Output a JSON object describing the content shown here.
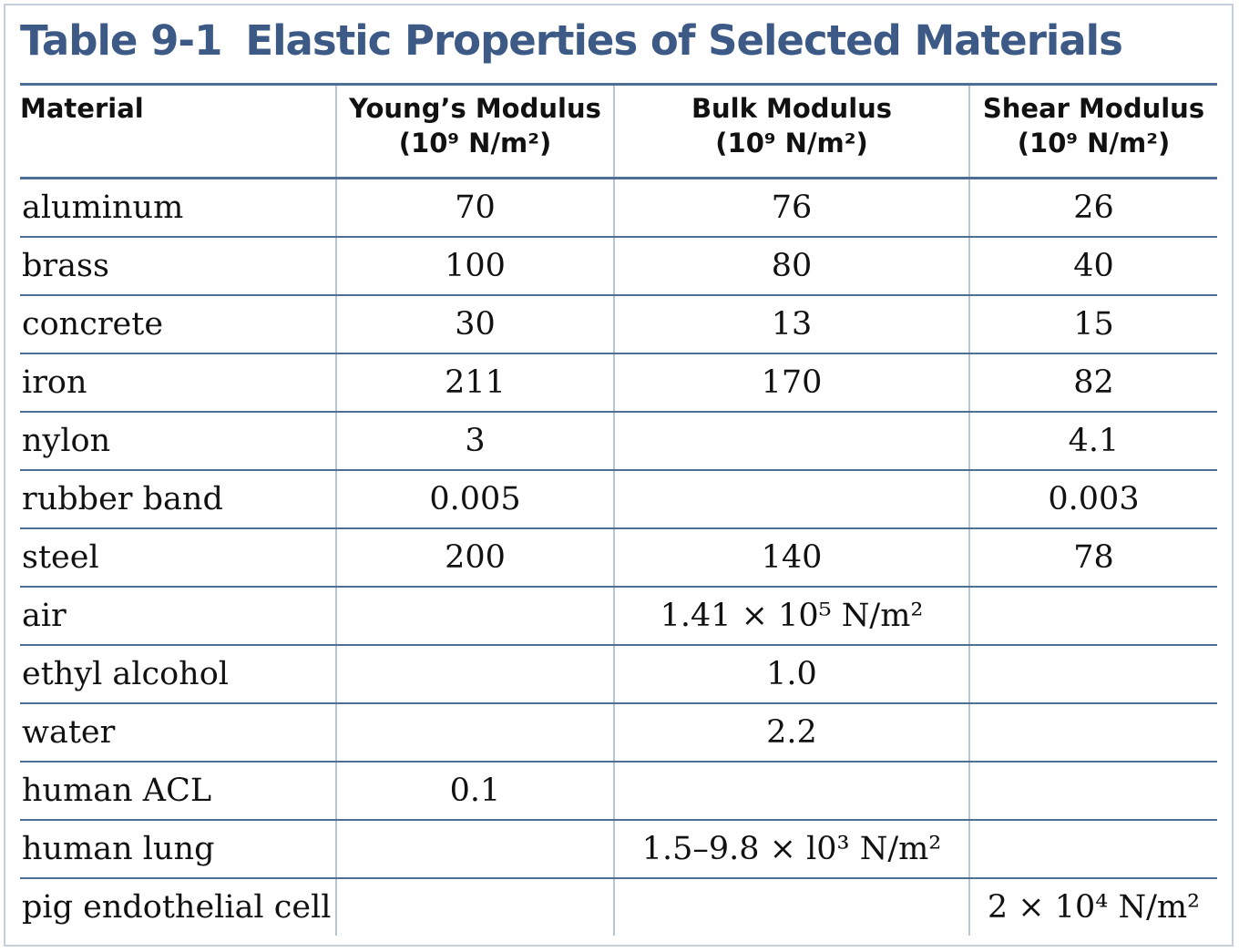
{
  "title": {
    "number": "Table 9-1",
    "text": "Elastic Properties of Selected Materials"
  },
  "columns": [
    {
      "label": "Material",
      "unit": ""
    },
    {
      "label": "Young’s Modulus",
      "unit": "(10⁹ N/m²)"
    },
    {
      "label": "Bulk Modulus",
      "unit": "(10⁹ N/m²)"
    },
    {
      "label": "Shear Modulus",
      "unit": "(10⁹ N/m²)"
    }
  ],
  "rows": [
    {
      "material": "aluminum",
      "young": "70",
      "bulk": "76",
      "shear": "26"
    },
    {
      "material": "brass",
      "young": "100",
      "bulk": "80",
      "shear": "40"
    },
    {
      "material": "concrete",
      "young": "30",
      "bulk": "13",
      "shear": "15"
    },
    {
      "material": "iron",
      "young": "211",
      "bulk": "170",
      "shear": "82"
    },
    {
      "material": "nylon",
      "young": "3",
      "bulk": "",
      "shear": "4.1"
    },
    {
      "material": "rubber band",
      "young": "0.005",
      "bulk": "",
      "shear": "0.003"
    },
    {
      "material": "steel",
      "young": "200",
      "bulk": "140",
      "shear": "78"
    },
    {
      "material": "air",
      "young": "",
      "bulk": "1.41 × 10⁵ N/m²",
      "shear": ""
    },
    {
      "material": "ethyl alcohol",
      "young": "",
      "bulk": "1.0",
      "shear": ""
    },
    {
      "material": "water",
      "young": "",
      "bulk": "2.2",
      "shear": ""
    },
    {
      "material": "human ACL",
      "young": "0.1",
      "bulk": "",
      "shear": ""
    },
    {
      "material": "human lung",
      "young": "",
      "bulk": "1.5–9.8 × l0³ N/m²",
      "shear": ""
    },
    {
      "material": "pig endothelial cell",
      "young": "",
      "bulk": "",
      "shear": "2 × 10⁴ N/m²"
    }
  ],
  "colors": {
    "title": "#3c5a85",
    "rule": "#4e6e96",
    "frame": "#c5cfdc"
  }
}
